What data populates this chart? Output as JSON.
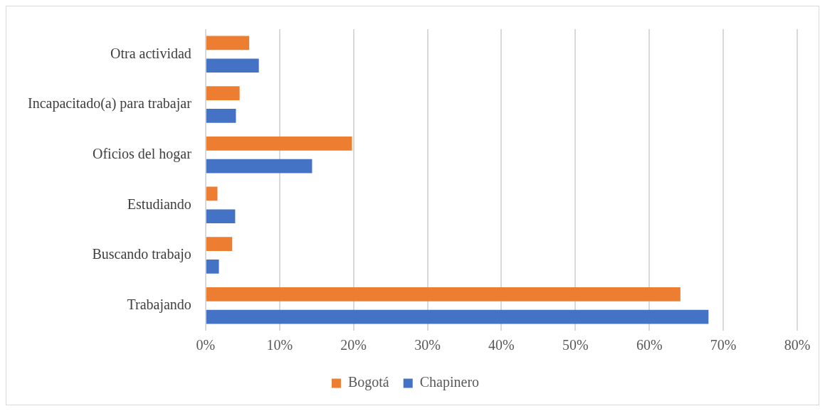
{
  "chart_data": {
    "type": "bar",
    "orientation": "horizontal",
    "categories": [
      "Otra actividad",
      "Incapacitado(a) para trabajar",
      "Oficios del hogar",
      "Estudiando",
      "Buscando trabajo",
      "Trabajando"
    ],
    "series": [
      {
        "name": "Bogotá",
        "color": "#ed7d31",
        "values": [
          5.9,
          4.6,
          19.8,
          1.6,
          3.6,
          64.2
        ]
      },
      {
        "name": "Chapinero",
        "color": "#4472c4",
        "values": [
          7.2,
          4.1,
          14.4,
          4.0,
          1.8,
          68.0
        ]
      }
    ],
    "xlim": [
      0,
      80
    ],
    "xticks": [
      {
        "value": 0,
        "label": "0%"
      },
      {
        "value": 10,
        "label": "10%"
      },
      {
        "value": 20,
        "label": "20%"
      },
      {
        "value": 30,
        "label": "30%"
      },
      {
        "value": 40,
        "label": "40%"
      },
      {
        "value": 50,
        "label": "50%"
      },
      {
        "value": 60,
        "label": "60%"
      },
      {
        "value": 70,
        "label": "70%"
      },
      {
        "value": 80,
        "label": "80%"
      }
    ],
    "grid": "x",
    "legend": "bottom"
  }
}
